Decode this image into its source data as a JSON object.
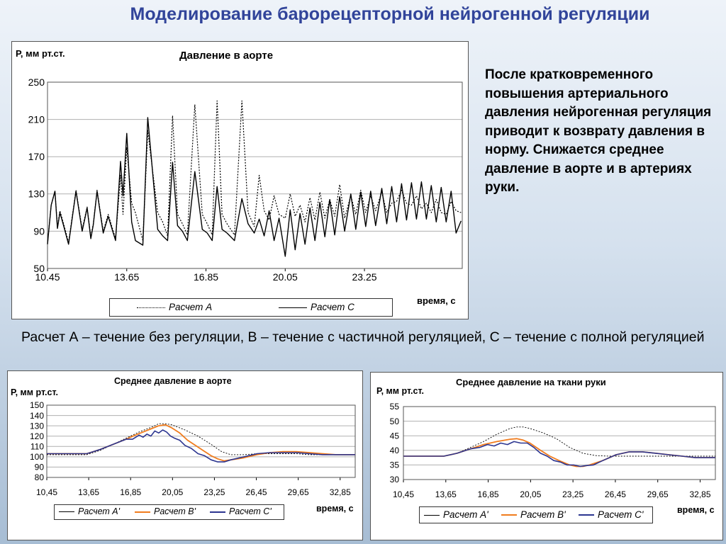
{
  "slide": {
    "title": "Моделирование барорецепторной нейрогенной регуляции",
    "side_text": "После кратковременного повышения артериального давления нейрогенная регуляция приводит к возврату давления в норму. Снижается  среднее давление в аорте и в артериях руки.",
    "caption": "Расчет А – течение без регуляции,  В – течение с частичной регуляцией, С – течение с полной регуляцией"
  },
  "colors": {
    "title": "#31449a",
    "series_a": "#000000",
    "series_b": "#f07c1e",
    "series_c": "#2c3590",
    "grid": "#b0b0b0"
  },
  "chart_data": [
    {
      "type": "line",
      "title": "Давление в аорте",
      "ylabel": "Р, мм рт.ст.",
      "xlabel": "время, с",
      "xlim": [
        10.45,
        27.2
      ],
      "ylim": [
        50,
        250
      ],
      "yticks": [
        50,
        90,
        130,
        170,
        210,
        250
      ],
      "xticks": [
        10.45,
        13.65,
        16.85,
        20.05,
        23.25
      ],
      "xtick_labels": [
        "10.45",
        "13.65",
        "16.85",
        "20.05",
        "23.25"
      ],
      "legend": "bottom",
      "grid": "horizontal",
      "series": [
        {
          "name": "Расчет А",
          "style": "dotted",
          "x": [
            10.45,
            10.6,
            10.75,
            10.85,
            10.95,
            11.1,
            11.3,
            11.6,
            11.85,
            12.05,
            12.2,
            12.3,
            12.45,
            12.7,
            12.9,
            13.2,
            13.4,
            13.5,
            13.65,
            13.85,
            14.0,
            14.3,
            14.5,
            14.9,
            15.1,
            15.3,
            15.5,
            15.7,
            15.9,
            16.1,
            16.4,
            16.7,
            16.9,
            17.1,
            17.3,
            17.5,
            17.7,
            18.0,
            18.3,
            18.55,
            18.8,
            19.0,
            19.2,
            19.4,
            19.6,
            19.8,
            20.05,
            20.25,
            20.45,
            20.65,
            20.85,
            21.05,
            21.25,
            21.45,
            21.65,
            21.85,
            22.05,
            22.25,
            22.45,
            22.7,
            22.9,
            23.1,
            23.3,
            23.5,
            23.7,
            23.95,
            24.15,
            24.35,
            24.55,
            24.75,
            24.95,
            25.15,
            25.35,
            25.55,
            25.75,
            25.95,
            26.15,
            26.35,
            26.55,
            26.75,
            26.95,
            27.15
          ],
          "y": [
            77,
            118,
            133,
            95,
            112,
            98,
            78,
            134,
            92,
            116,
            84,
            98,
            134,
            90,
            108,
            82,
            150,
            108,
            180,
            120,
            110,
            80,
            198,
            110,
            100,
            85,
            214,
            108,
            98,
            86,
            226,
            108,
            98,
            86,
            230,
            108,
            98,
            86,
            230,
            110,
            95,
            150,
            112,
            102,
            128,
            108,
            104,
            130,
            106,
            118,
            100,
            126,
            102,
            132,
            104,
            124,
            106,
            140,
            104,
            128,
            108,
            134,
            110,
            128,
            112,
            132,
            110,
            120,
            122,
            134,
            120,
            118,
            128,
            114,
            120,
            110,
            124,
            110,
            108,
            122,
            112,
            110
          ]
        },
        {
          "name": "Расчет С",
          "style": "solid",
          "x": [
            10.45,
            10.6,
            10.75,
            10.85,
            10.95,
            11.1,
            11.3,
            11.6,
            11.85,
            12.05,
            12.2,
            12.3,
            12.45,
            12.7,
            12.9,
            13.2,
            13.4,
            13.5,
            13.65,
            13.85,
            14.0,
            14.3,
            14.5,
            14.9,
            15.1,
            15.3,
            15.5,
            15.7,
            15.9,
            16.1,
            16.4,
            16.7,
            16.9,
            17.1,
            17.3,
            17.5,
            17.7,
            18.0,
            18.3,
            18.55,
            18.8,
            19.0,
            19.2,
            19.4,
            19.6,
            19.8,
            20.05,
            20.25,
            20.45,
            20.65,
            20.85,
            21.05,
            21.25,
            21.45,
            21.65,
            21.85,
            22.05,
            22.25,
            22.45,
            22.7,
            22.9,
            23.1,
            23.3,
            23.5,
            23.7,
            23.95,
            24.15,
            24.35,
            24.55,
            24.75,
            24.95,
            25.15,
            25.35,
            25.55,
            25.75,
            25.95,
            26.15,
            26.35,
            26.55,
            26.75,
            26.95,
            27.15
          ],
          "y": [
            76,
            118,
            133,
            93,
            110,
            96,
            76,
            133,
            90,
            115,
            82,
            97,
            133,
            88,
            106,
            80,
            165,
            128,
            195,
            100,
            80,
            75,
            212,
            92,
            85,
            80,
            164,
            96,
            90,
            80,
            154,
            92,
            88,
            80,
            138,
            92,
            88,
            80,
            125,
            98,
            88,
            103,
            85,
            112,
            80,
            104,
            63,
            113,
            70,
            109,
            76,
            115,
            80,
            121,
            84,
            124,
            86,
            127,
            90,
            130,
            92,
            132,
            95,
            133,
            96,
            136,
            98,
            138,
            100,
            141,
            102,
            142,
            103,
            143,
            103,
            139,
            100,
            137,
            100,
            133,
            88,
            101
          ]
        }
      ]
    },
    {
      "type": "line",
      "title": "Среднее давление в аорте",
      "ylabel": "Р, мм рт.ст.",
      "xlabel": "время, с",
      "xlim": [
        10.45,
        34.0
      ],
      "ylim": [
        80,
        150
      ],
      "yticks": [
        80,
        90,
        100,
        110,
        120,
        130,
        140,
        150
      ],
      "xticks": [
        10.45,
        13.65,
        16.85,
        20.05,
        23.25,
        26.45,
        29.65,
        32.85
      ],
      "xtick_labels": [
        "10,45",
        "13,65",
        "16,85",
        "20,05",
        "23,25",
        "26,45",
        "29,65",
        "32,85"
      ],
      "legend": "bottom",
      "grid": "horizontal",
      "series": [
        {
          "name": "Расчет A'",
          "style": "dotted",
          "x": [
            10.45,
            12.0,
            13.5,
            14.5,
            15.5,
            16.5,
            17.5,
            18.5,
            19.0,
            19.5,
            20.0,
            21.0,
            22.0,
            23.0,
            23.8,
            24.5,
            25.5,
            26.5,
            27.5,
            28.5,
            29.5,
            30.5,
            31.5,
            32.5,
            33.5,
            34.0
          ],
          "y": [
            102,
            102,
            102,
            106,
            112,
            118,
            124,
            129,
            132,
            132,
            131,
            126,
            120,
            112,
            105,
            102,
            102,
            103,
            103,
            103,
            103,
            102,
            102,
            102,
            102,
            102
          ]
        },
        {
          "name": "Расчет B'",
          "style": "solid",
          "x": [
            10.45,
            12.0,
            13.5,
            14.5,
            15.5,
            16.5,
            17.2,
            17.8,
            18.4,
            19.0,
            19.5,
            20.0,
            20.6,
            21.2,
            21.8,
            22.4,
            23.0,
            23.5,
            24.0,
            24.5,
            25.5,
            26.5,
            27.5,
            28.5,
            29.5,
            30.5,
            31.5,
            32.5,
            33.5,
            34.0
          ],
          "y": [
            103,
            103,
            103,
            107,
            112,
            117,
            121,
            124,
            127,
            130,
            131,
            128,
            123,
            116,
            111,
            106,
            101,
            98,
            96,
            97,
            99,
            102,
            104,
            105,
            105,
            104,
            103,
            102,
            102,
            102
          ]
        },
        {
          "name": "Расчет C'",
          "style": "solid",
          "x": [
            10.45,
            12.0,
            13.5,
            14.5,
            15.5,
            16.5,
            17.0,
            17.5,
            17.8,
            18.1,
            18.4,
            18.7,
            19.0,
            19.3,
            19.6,
            19.9,
            20.2,
            20.6,
            21.0,
            21.5,
            22.0,
            22.5,
            23.0,
            23.5,
            24.0,
            24.5,
            25.5,
            26.5,
            27.5,
            28.5,
            29.5,
            30.5,
            31.5,
            32.5,
            33.5,
            34.0
          ],
          "y": [
            103,
            103,
            103,
            107,
            112,
            117,
            117,
            121,
            119,
            122,
            120,
            125,
            123,
            126,
            124,
            120,
            118,
            116,
            111,
            108,
            103,
            101,
            97,
            95,
            95,
            97,
            100,
            103,
            104,
            104,
            104,
            103,
            102,
            102,
            102,
            102
          ]
        }
      ]
    },
    {
      "type": "line",
      "title": "Среднее давление на ткани руки",
      "ylabel": "Р, мм рт.ст.",
      "xlabel": "время, с",
      "xlim": [
        10.45,
        34.0
      ],
      "ylim": [
        30,
        55
      ],
      "yticks": [
        30,
        35,
        40,
        45,
        50,
        55
      ],
      "xticks": [
        10.45,
        13.65,
        16.85,
        20.05,
        23.25,
        26.45,
        29.65,
        32.85
      ],
      "xtick_labels": [
        "10,45",
        "13,65",
        "16,85",
        "20,05",
        "23,25",
        "26,45",
        "29,65",
        "32,85"
      ],
      "legend": "bottom",
      "grid": "horizontal",
      "series": [
        {
          "name": "Расчет A'",
          "style": "dotted",
          "x": [
            10.45,
            12.0,
            13.5,
            14.5,
            15.5,
            16.5,
            17.5,
            18.5,
            19.0,
            19.5,
            20.0,
            21.0,
            22.0,
            23.0,
            24.0,
            25.0,
            26.0,
            27.0,
            28.0,
            29.0,
            30.0,
            31.0,
            32.0,
            33.0,
            34.0
          ],
          "y": [
            38,
            38,
            38,
            39,
            41,
            43,
            45.5,
            47.5,
            48,
            48,
            47.5,
            46,
            44,
            41,
            39,
            38.2,
            38,
            38,
            38,
            38,
            38,
            38,
            38,
            38,
            38
          ]
        },
        {
          "name": "Расчет B'",
          "style": "solid",
          "x": [
            10.45,
            12.0,
            13.5,
            14.5,
            15.5,
            16.5,
            17.5,
            18.5,
            19.0,
            19.5,
            20.0,
            20.8,
            21.5,
            22.2,
            23.0,
            23.5,
            24.0,
            24.5,
            25.5,
            26.5,
            27.5,
            28.5,
            29.5,
            30.5,
            31.5,
            32.5,
            33.5,
            34.0
          ],
          "y": [
            38,
            38,
            38,
            39,
            40.5,
            42,
            43,
            43.8,
            44,
            43.5,
            42.5,
            40,
            38,
            36.5,
            35,
            34.5,
            34.5,
            35,
            36.5,
            38.5,
            39.5,
            39.5,
            39,
            38.5,
            38,
            37.5,
            37.5,
            37.5
          ]
        },
        {
          "name": "Расчет C'",
          "style": "solid",
          "x": [
            10.45,
            12.0,
            13.5,
            14.5,
            15.5,
            16.2,
            16.8,
            17.3,
            17.8,
            18.3,
            18.8,
            19.3,
            19.8,
            20.3,
            20.8,
            21.3,
            21.8,
            22.3,
            22.8,
            23.3,
            23.8,
            24.3,
            24.8,
            25.5,
            26.5,
            27.5,
            28.5,
            29.5,
            30.5,
            31.5,
            32.5,
            33.5,
            34.0
          ],
          "y": [
            38,
            38,
            38,
            39,
            40.5,
            41,
            42,
            41.5,
            42.5,
            42,
            43,
            42.5,
            42.5,
            41,
            39,
            38,
            36.5,
            36,
            35,
            35,
            34.5,
            34.8,
            35,
            36.5,
            38.5,
            39.5,
            39.5,
            39,
            38.5,
            38,
            37.5,
            37.5,
            37.5
          ]
        }
      ]
    }
  ]
}
